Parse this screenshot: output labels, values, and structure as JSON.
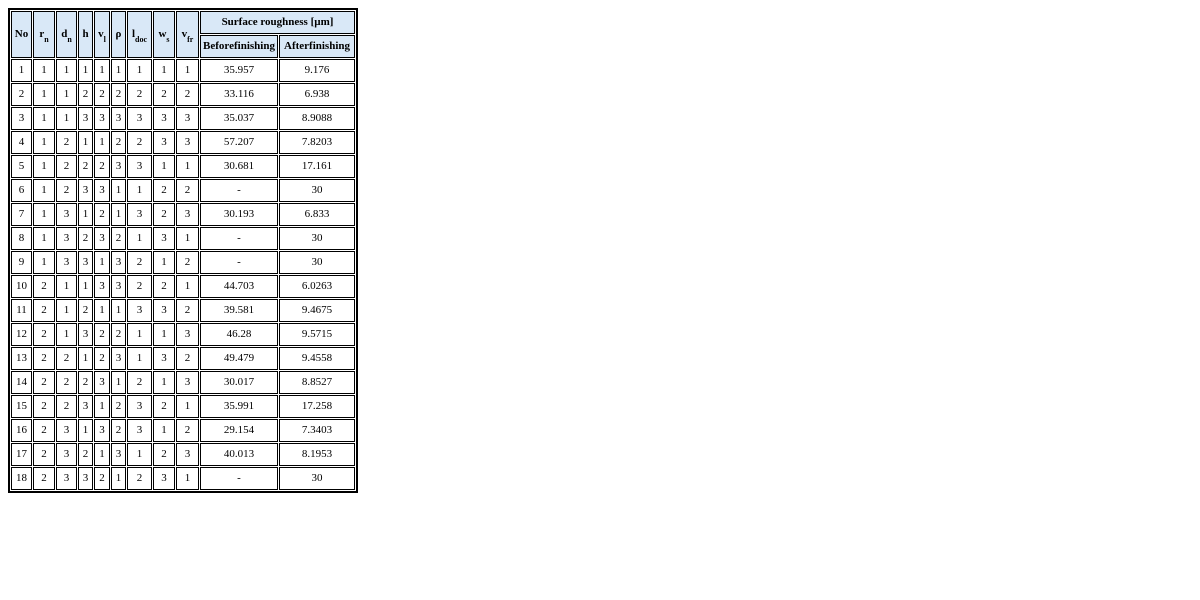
{
  "table": {
    "title_semantic": "experiment-results-table",
    "colors": {
      "header_bg": "#d9e8f7",
      "border": "#000000",
      "text": "#000000",
      "page_bg": "#ffffff"
    },
    "columns": [
      {
        "base": "No",
        "sub": ""
      },
      {
        "base": "r",
        "sub": "n"
      },
      {
        "base": "d",
        "sub": "n"
      },
      {
        "base": "h",
        "sub": ""
      },
      {
        "base": "v",
        "sub": "l"
      },
      {
        "base": "ρ",
        "sub": ""
      },
      {
        "base": "l",
        "sub": "doc"
      },
      {
        "base": "w",
        "sub": "s"
      },
      {
        "base": "v",
        "sub": "fr"
      }
    ],
    "group_header": "Surface roughness [µm]",
    "sub_headers": [
      "Beforefinishing",
      "Afterfinishing"
    ],
    "rows": [
      {
        "no": "1",
        "params": [
          "1",
          "1",
          "1",
          "1",
          "1",
          "1",
          "1",
          "1"
        ],
        "before": "35.957",
        "after": "9.176"
      },
      {
        "no": "2",
        "params": [
          "1",
          "1",
          "2",
          "2",
          "2",
          "2",
          "2",
          "2"
        ],
        "before": "33.116",
        "after": "6.938"
      },
      {
        "no": "3",
        "params": [
          "1",
          "1",
          "3",
          "3",
          "3",
          "3",
          "3",
          "3"
        ],
        "before": "35.037",
        "after": "8.9088"
      },
      {
        "no": "4",
        "params": [
          "1",
          "2",
          "1",
          "1",
          "2",
          "2",
          "3",
          "3"
        ],
        "before": "57.207",
        "after": "7.8203"
      },
      {
        "no": "5",
        "params": [
          "1",
          "2",
          "2",
          "2",
          "3",
          "3",
          "1",
          "1"
        ],
        "before": "30.681",
        "after": "17.161"
      },
      {
        "no": "6",
        "params": [
          "1",
          "2",
          "3",
          "3",
          "1",
          "1",
          "2",
          "2"
        ],
        "before": "-",
        "after": "30"
      },
      {
        "no": "7",
        "params": [
          "1",
          "3",
          "1",
          "2",
          "1",
          "3",
          "2",
          "3"
        ],
        "before": "30.193",
        "after": "6.833"
      },
      {
        "no": "8",
        "params": [
          "1",
          "3",
          "2",
          "3",
          "2",
          "1",
          "3",
          "1"
        ],
        "before": "-",
        "after": "30"
      },
      {
        "no": "9",
        "params": [
          "1",
          "3",
          "3",
          "1",
          "3",
          "2",
          "1",
          "2"
        ],
        "before": "-",
        "after": "30"
      },
      {
        "no": "10",
        "params": [
          "2",
          "1",
          "1",
          "3",
          "3",
          "2",
          "2",
          "1"
        ],
        "before": "44.703",
        "after": "6.0263"
      },
      {
        "no": "11",
        "params": [
          "2",
          "1",
          "2",
          "1",
          "1",
          "3",
          "3",
          "2"
        ],
        "before": "39.581",
        "after": "9.4675"
      },
      {
        "no": "12",
        "params": [
          "2",
          "1",
          "3",
          "2",
          "2",
          "1",
          "1",
          "3"
        ],
        "before": "46.28",
        "after": "9.5715"
      },
      {
        "no": "13",
        "params": [
          "2",
          "2",
          "1",
          "2",
          "3",
          "1",
          "3",
          "2"
        ],
        "before": "49.479",
        "after": "9.4558"
      },
      {
        "no": "14",
        "params": [
          "2",
          "2",
          "2",
          "3",
          "1",
          "2",
          "1",
          "3"
        ],
        "before": "30.017",
        "after": "8.8527"
      },
      {
        "no": "15",
        "params": [
          "2",
          "2",
          "3",
          "1",
          "2",
          "3",
          "2",
          "1"
        ],
        "before": "35.991",
        "after": "17.258"
      },
      {
        "no": "16",
        "params": [
          "2",
          "3",
          "1",
          "3",
          "2",
          "3",
          "1",
          "2"
        ],
        "before": "29.154",
        "after": "7.3403"
      },
      {
        "no": "17",
        "params": [
          "2",
          "3",
          "2",
          "1",
          "3",
          "1",
          "2",
          "3"
        ],
        "before": "40.013",
        "after": "8.1953"
      },
      {
        "no": "18",
        "params": [
          "2",
          "3",
          "3",
          "2",
          "1",
          "2",
          "3",
          "1"
        ],
        "before": "-",
        "after": "30"
      }
    ]
  }
}
